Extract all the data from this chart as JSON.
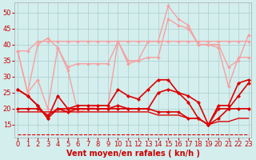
{
  "x": [
    0,
    1,
    2,
    3,
    4,
    5,
    6,
    7,
    8,
    9,
    10,
    11,
    12,
    13,
    14,
    15,
    16,
    17,
    18,
    19,
    20,
    21,
    22,
    23
  ],
  "series": [
    {
      "y": [
        38,
        38,
        41,
        41,
        41,
        41,
        41,
        41,
        41,
        41,
        41,
        41,
        41,
        41,
        41,
        41,
        41,
        41,
        41,
        41,
        41,
        41,
        41,
        41
      ],
      "color": "#f5a0a0",
      "lw": 1.0,
      "marker": "D",
      "ms": 2.0,
      "dashed": false
    },
    {
      "y": [
        38,
        25,
        40,
        42,
        39,
        33,
        34,
        34,
        34,
        34,
        41,
        34,
        35,
        41,
        41,
        52,
        48,
        46,
        40,
        40,
        40,
        33,
        35,
        43
      ],
      "color": "#f5a0a0",
      "lw": 1.0,
      "marker": "D",
      "ms": 2.0,
      "dashed": false
    },
    {
      "y": [
        38,
        25,
        29,
        20,
        39,
        32,
        19,
        20,
        21,
        21,
        41,
        35,
        35,
        36,
        36,
        48,
        46,
        45,
        40,
        40,
        39,
        27,
        36,
        36
      ],
      "color": "#f5a0a0",
      "lw": 1.0,
      "marker": "D",
      "ms": 2.0,
      "dashed": false
    },
    {
      "y": [
        26,
        24,
        21,
        17,
        24,
        20,
        21,
        21,
        21,
        21,
        26,
        24,
        23,
        26,
        29,
        29,
        25,
        24,
        22,
        15,
        21,
        21,
        28,
        29
      ],
      "color": "#dd0000",
      "lw": 1.2,
      "marker": "D",
      "ms": 2.2,
      "dashed": false
    },
    {
      "y": [
        26,
        24,
        21,
        17,
        20,
        19,
        20,
        20,
        20,
        20,
        21,
        20,
        20,
        20,
        25,
        26,
        25,
        22,
        17,
        15,
        20,
        20,
        24,
        28
      ],
      "color": "#dd0000",
      "lw": 1.2,
      "marker": "D",
      "ms": 2.2,
      "dashed": false
    },
    {
      "y": [
        20,
        20,
        20,
        18,
        20,
        20,
        20,
        20,
        20,
        20,
        20,
        20,
        20,
        20,
        19,
        19,
        19,
        17,
        17,
        15,
        17,
        20,
        20,
        20
      ],
      "color": "#dd0000",
      "lw": 1.2,
      "marker": "D",
      "ms": 2.2,
      "dashed": false
    },
    {
      "y": [
        19,
        19,
        19,
        19,
        19,
        19,
        19,
        19,
        19,
        19,
        19,
        19,
        19,
        19,
        18,
        18,
        18,
        17,
        17,
        15,
        16,
        16,
        17,
        17
      ],
      "color": "#dd0000",
      "lw": 1.0,
      "marker": null,
      "ms": 0,
      "dashed": false
    },
    {
      "y": [
        12,
        12,
        12,
        12,
        12,
        12,
        12,
        12,
        12,
        12,
        12,
        12,
        12,
        12,
        12,
        12,
        12,
        12,
        12,
        12,
        12,
        12,
        12,
        12
      ],
      "color": "#dd0000",
      "lw": 0.8,
      "marker": null,
      "ms": 0,
      "dashed": true
    }
  ],
  "bg_color": "#d4eeee",
  "grid_color": "#aacccc",
  "xlabel": "Vent moyen/en rafales ( kn/h )",
  "yticks": [
    15,
    20,
    25,
    30,
    35,
    40,
    45,
    50
  ],
  "xlim": [
    -0.3,
    23.3
  ],
  "ylim": [
    11,
    53
  ],
  "xlabel_color": "#cc0000",
  "tick_color": "#cc0000",
  "label_fontsize": 7,
  "tick_fontsize": 6
}
